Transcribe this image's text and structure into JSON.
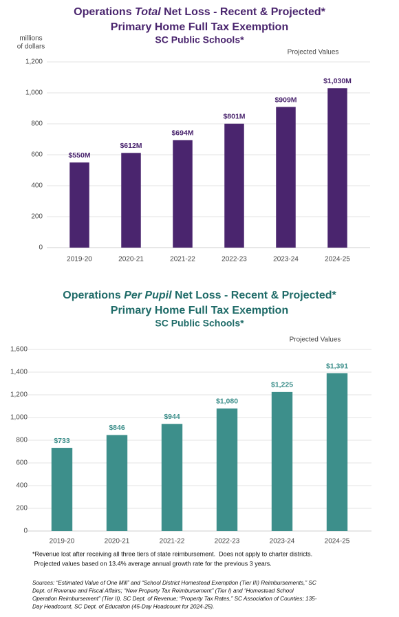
{
  "chart_data": [
    {
      "type": "bar",
      "title": [
        "Operations ",
        "Total",
        " Net Loss - Recent & Projected*"
      ],
      "subtitle": [
        "Primary Home Full Tax Exemption",
        "SC Public Schools*"
      ],
      "ylabel": [
        "millions",
        "of dollars"
      ],
      "annotation": "Projected Values",
      "categories": [
        "2019-20",
        "2020-21",
        "2021-22",
        "2022-23",
        "2023-24",
        "2024-25"
      ],
      "values": [
        550,
        612,
        694,
        801,
        909,
        1030
      ],
      "value_labels": [
        "$550M",
        "$612M",
        "$694M",
        "$801M",
        "$909M",
        "$1,030M"
      ],
      "color": "#4a256e",
      "title_color": "#4a256e",
      "ylim": [
        0,
        1200
      ],
      "yticks": [
        0,
        200,
        400,
        600,
        800,
        {
          "value": 1000,
          "label": "1,000"
        },
        {
          "value": 1200,
          "label": "1,200"
        }
      ],
      "grid": true
    },
    {
      "type": "bar",
      "title": [
        "Operations ",
        "Per Pupil",
        " Net Loss - Recent & Projected*"
      ],
      "subtitle": [
        "Primary Home Full Tax Exemption",
        "SC Public Schools*"
      ],
      "annotation": "Projected Values",
      "categories": [
        "2019-20",
        "2020-21",
        "2021-22",
        "2022-23",
        "2023-24",
        "2024-25"
      ],
      "values": [
        733,
        846,
        944,
        1080,
        1225,
        1391
      ],
      "value_labels": [
        "$733",
        "$846",
        "$944",
        "$1,080",
        "$1,225",
        "$1,391"
      ],
      "color": "#3d8f8b",
      "title_color": "#1f6b68",
      "ylim": [
        0,
        1600
      ],
      "yticks": [
        0,
        200,
        400,
        600,
        800,
        {
          "value": 1000,
          "label": "1,000"
        },
        {
          "value": 1200,
          "label": "1,200"
        },
        {
          "value": 1400,
          "label": "1,400"
        },
        {
          "value": 1600,
          "label": "1,600"
        }
      ],
      "grid": true
    }
  ],
  "notes": [
    "*Revenue lost after receiving all three tiers of state reimbursement.  Does not apply to charter districts.",
    " Projected values based on 13.4% average annual growth rate for the previous 3 years."
  ],
  "sources": [
    "Sources: “Estimated Value of One Mill” and “School District Homestead Exemption (Tier III) Reimbursements,” SC",
    "Dept. of Revenue and Fiscal Affairs; “New Property Tax Reimbursement” (Tier I) and “Homestead School",
    "Operation Reimbursement” (Tier II), SC Dept. of Revenue; “Property Tax Rates,” SC Association of Counties; 135-",
    "Day Headcount, SC Dept. of Education (45-Day Headcount for 2024-25)."
  ]
}
